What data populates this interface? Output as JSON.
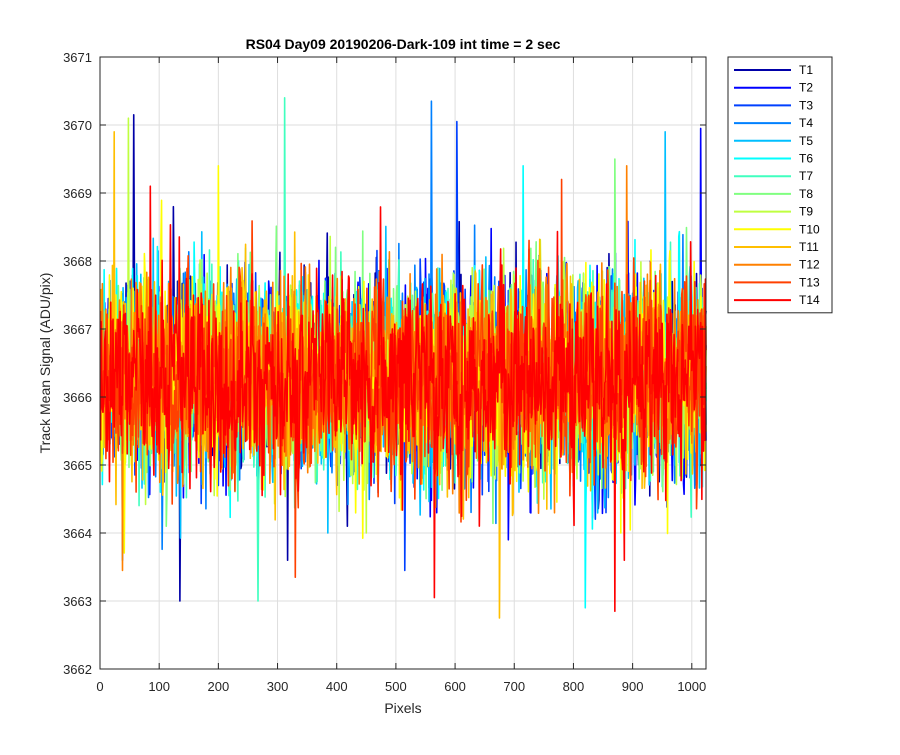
{
  "chart_data": {
    "type": "line",
    "title": "RS04 Day09 20190206-Dark-109 int time = 2 sec",
    "xlabel": "Pixels",
    "ylabel": "Track Mean Signal (ADU/pix)",
    "xlim": [
      0,
      1024
    ],
    "ylim": [
      3662,
      3671
    ],
    "x_ticks": [
      0,
      100,
      200,
      300,
      400,
      500,
      600,
      700,
      800,
      900,
      1000
    ],
    "y_ticks": [
      3662,
      3663,
      3664,
      3665,
      3666,
      3667,
      3668,
      3669,
      3670,
      3671
    ],
    "grid": true,
    "legend_placement": "outside-top-right",
    "x_range": [
      1,
      1024
    ],
    "typical_mean": 3666.3,
    "typical_spread_std": 0.9,
    "series": [
      {
        "name": "T1",
        "color": "#0000a8",
        "extremes": [
          {
            "x": 57,
            "y": 3670.15
          },
          {
            "x": 135,
            "y": 3663.0
          }
        ]
      },
      {
        "name": "T2",
        "color": "#0000ff",
        "extremes": [
          {
            "x": 690,
            "y": 3663.9
          },
          {
            "x": 1015,
            "y": 3669.95
          }
        ]
      },
      {
        "name": "T3",
        "color": "#0040ff",
        "extremes": [
          {
            "x": 515,
            "y": 3663.45
          },
          {
            "x": 603,
            "y": 3670.05
          }
        ]
      },
      {
        "name": "T4",
        "color": "#0080ff",
        "extremes": [
          {
            "x": 560,
            "y": 3670.35
          },
          {
            "x": 38,
            "y": 3663.6
          }
        ]
      },
      {
        "name": "T5",
        "color": "#00bfff",
        "extremes": [
          {
            "x": 955,
            "y": 3669.9
          },
          {
            "x": 385,
            "y": 3664.0
          }
        ]
      },
      {
        "name": "T6",
        "color": "#00ffff",
        "extremes": [
          {
            "x": 820,
            "y": 3662.9
          },
          {
            "x": 715,
            "y": 3669.4
          }
        ]
      },
      {
        "name": "T7",
        "color": "#40ffbf",
        "extremes": [
          {
            "x": 312,
            "y": 3670.4
          },
          {
            "x": 267,
            "y": 3663.0
          }
        ]
      },
      {
        "name": "T8",
        "color": "#80ff80",
        "extremes": [
          {
            "x": 870,
            "y": 3669.5
          },
          {
            "x": 112,
            "y": 3664.1
          }
        ]
      },
      {
        "name": "T9",
        "color": "#bfff40",
        "extremes": [
          {
            "x": 48,
            "y": 3670.1
          },
          {
            "x": 450,
            "y": 3664.0
          }
        ]
      },
      {
        "name": "T10",
        "color": "#ffff00",
        "extremes": [
          {
            "x": 200,
            "y": 3669.4
          },
          {
            "x": 880,
            "y": 3664.0
          }
        ]
      },
      {
        "name": "T11",
        "color": "#ffbf00",
        "extremes": [
          {
            "x": 675,
            "y": 3662.75
          },
          {
            "x": 24,
            "y": 3669.9
          }
        ]
      },
      {
        "name": "T12",
        "color": "#ff8000",
        "extremes": [
          {
            "x": 38,
            "y": 3663.45
          },
          {
            "x": 890,
            "y": 3669.4
          }
        ]
      },
      {
        "name": "T13",
        "color": "#ff4000",
        "extremes": [
          {
            "x": 330,
            "y": 3663.35
          },
          {
            "x": 780,
            "y": 3669.2
          }
        ]
      },
      {
        "name": "T14",
        "color": "#ff0000",
        "extremes": [
          {
            "x": 870,
            "y": 3662.85
          },
          {
            "x": 565,
            "y": 3663.05
          },
          {
            "x": 85,
            "y": 3669.1
          }
        ]
      }
    ]
  }
}
